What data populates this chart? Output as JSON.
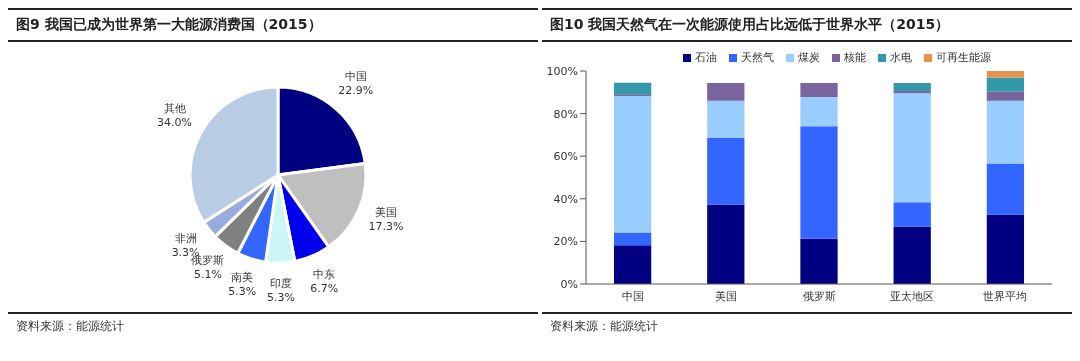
{
  "chart_data": [
    {
      "type": "pie",
      "title": "图9  我国已成为世界第一大能源消费国（2015）",
      "categories": [
        "中国",
        "美国",
        "中东",
        "印度",
        "南美",
        "俄罗斯",
        "非洲",
        "其他"
      ],
      "values": [
        22.9,
        17.3,
        6.7,
        5.3,
        5.3,
        5.1,
        3.3,
        34.0
      ],
      "colors": [
        "#000080",
        "#bfbfbf",
        "#0000ee",
        "#ccf5f5",
        "#3366ff",
        "#808080",
        "#99aadd",
        "#b8cce4"
      ],
      "value_labels": [
        "22.9%",
        "17.3%",
        "6.7%",
        "5.3%",
        "5.3%",
        "5.1%",
        "3.3%",
        "34.0%"
      ],
      "legend": false,
      "annotations": [
        "资料来源：能源统计"
      ]
    },
    {
      "type": "bar",
      "title": "图10 我国天然气在一次能源使用占比远低于世界水平（2015）",
      "categories": [
        "中国",
        "美国",
        "俄罗斯",
        "亚太地区",
        "世界平均"
      ],
      "stacked": true,
      "legend": "top",
      "ylim": [
        0,
        100
      ],
      "yticks": [
        {
          "value": 0,
          "label": "0%"
        },
        {
          "value": 20,
          "label": "20%"
        },
        {
          "value": 40,
          "label": "40%"
        },
        {
          "value": 60,
          "label": "60%"
        },
        {
          "value": 80,
          "label": "80%"
        },
        {
          "value": 100,
          "label": "100%"
        }
      ],
      "series": [
        {
          "name": "石油",
          "color": "#000080",
          "values": [
            18.2,
            37.3,
            21.3,
            27.0,
            32.6
          ]
        },
        {
          "name": "天然气",
          "color": "#3366ff",
          "values": [
            6.0,
            31.2,
            52.8,
            11.4,
            24.0
          ]
        },
        {
          "name": "煤炭",
          "color": "#99ccff",
          "values": [
            64.1,
            17.5,
            13.7,
            51.1,
            29.4
          ]
        },
        {
          "name": "核能",
          "color": "#7a64a0",
          "values": [
            0.8,
            8.4,
            6.6,
            1.1,
            4.3
          ]
        },
        {
          "name": "水电",
          "color": "#3399aa",
          "values": [
            5.4,
            0,
            0,
            3.8,
            6.6
          ]
        },
        {
          "name": "可再生能源",
          "color": "#e8934a",
          "values": [
            0,
            0,
            0,
            0,
            3.1
          ]
        }
      ],
      "annotations": [
        "资料来源：能源统计"
      ]
    }
  ]
}
